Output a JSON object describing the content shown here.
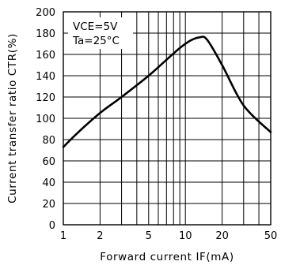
{
  "chart_data": {
    "type": "line",
    "xlabel": "Forward current  IF(mA)",
    "ylabel": "Current transfer ratio  CTR(%)",
    "x_scale": "log",
    "xlim": [
      1,
      50
    ],
    "ylim": [
      0,
      200
    ],
    "x_ticks": [
      1,
      2,
      5,
      10,
      20,
      50
    ],
    "x_tick_labels": [
      "1",
      "2",
      "5",
      "10",
      "20",
      "50"
    ],
    "x_minor_gridlines": [
      3,
      4,
      6,
      7,
      8,
      9,
      30,
      40
    ],
    "y_ticks": [
      0,
      20,
      40,
      60,
      80,
      100,
      120,
      140,
      160,
      180,
      200
    ],
    "y_tick_labels": [
      "0",
      "20",
      "40",
      "60",
      "80",
      "100",
      "120",
      "140",
      "160",
      "180",
      "200"
    ],
    "grid": true,
    "annotations": [
      "VCE=5V",
      "Ta=25°C"
    ],
    "series": [
      {
        "x": [
          1,
          1.3,
          2,
          3,
          5,
          7,
          9,
          11,
          13,
          15,
          20,
          30,
          50
        ],
        "values": [
          73,
          86,
          105,
          120,
          140,
          155,
          166,
          173,
          176,
          174,
          150,
          112,
          87
        ]
      }
    ]
  }
}
